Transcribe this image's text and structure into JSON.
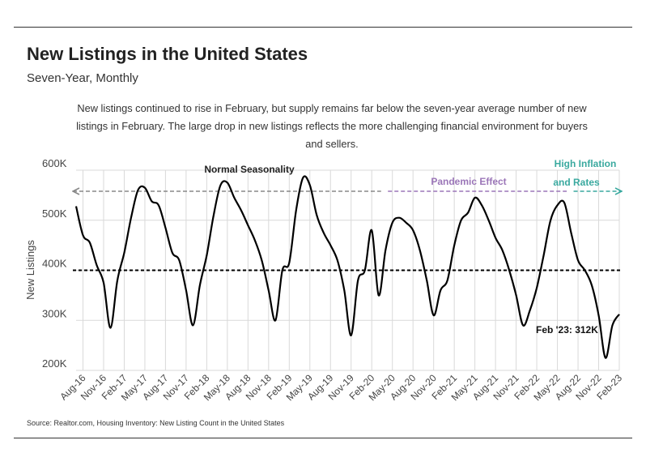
{
  "header": {
    "title": "New Listings in the United States",
    "subtitle": "Seven-Year, Monthly",
    "description": "New listings continued to rise in February, but supply remains far below the seven-year average number of new listings in February. The large drop in new listings reflects the more challenging financial environment for buyers and sellers."
  },
  "footer": {
    "source": "Source:  Realtor.com, Housing Inventory: New Listing Count in the United States"
  },
  "chart_data": {
    "type": "line",
    "ylabel": "New Listings",
    "xlabel": "",
    "ylim": [
      200000,
      600000
    ],
    "y_ticks": [
      {
        "value": 200000,
        "label": "200K"
      },
      {
        "value": 300000,
        "label": "300K"
      },
      {
        "value": 400000,
        "label": "400K"
      },
      {
        "value": 500000,
        "label": "500K"
      },
      {
        "value": 600000,
        "label": "600K"
      }
    ],
    "x_tick_labels": [
      "Aug-16",
      "Nov-16",
      "Feb-17",
      "May-17",
      "Aug-17",
      "Nov-17",
      "Feb-18",
      "May-18",
      "Aug-18",
      "Nov-18",
      "Feb-19",
      "May-19",
      "Aug-19",
      "Nov-19",
      "Feb-20",
      "May-20",
      "Aug-20",
      "Nov-20",
      "Feb-21",
      "May-21",
      "Aug-21",
      "Nov-21",
      "Feb-22",
      "May-22",
      "Aug-22",
      "Nov-22",
      "Feb-23"
    ],
    "x": [
      "Jul-16",
      "Aug-16",
      "Sep-16",
      "Oct-16",
      "Nov-16",
      "Dec-16",
      "Jan-17",
      "Feb-17",
      "Mar-17",
      "Apr-17",
      "May-17",
      "Jun-17",
      "Jul-17",
      "Aug-17",
      "Sep-17",
      "Oct-17",
      "Nov-17",
      "Dec-17",
      "Jan-18",
      "Feb-18",
      "Mar-18",
      "Apr-18",
      "May-18",
      "Jun-18",
      "Jul-18",
      "Aug-18",
      "Sep-18",
      "Oct-18",
      "Nov-18",
      "Dec-18",
      "Jan-19",
      "Feb-19",
      "Mar-19",
      "Apr-19",
      "May-19",
      "Jun-19",
      "Jul-19",
      "Aug-19",
      "Sep-19",
      "Oct-19",
      "Nov-19",
      "Dec-19",
      "Jan-20",
      "Feb-20",
      "Mar-20",
      "Apr-20",
      "May-20",
      "Jun-20",
      "Jul-20",
      "Aug-20",
      "Sep-20",
      "Oct-20",
      "Nov-20",
      "Dec-20",
      "Jan-21",
      "Feb-21",
      "Mar-21",
      "Apr-21",
      "May-21",
      "Jun-21",
      "Jul-21",
      "Aug-21",
      "Sep-21",
      "Oct-21",
      "Nov-21",
      "Dec-21",
      "Jan-22",
      "Feb-22",
      "Mar-22",
      "Apr-22",
      "May-22",
      "Jun-22",
      "Jul-22",
      "Aug-22",
      "Sep-22",
      "Oct-22",
      "Nov-22",
      "Dec-22",
      "Jan-23",
      "Feb-23"
    ],
    "series": [
      {
        "values": [
          528000,
          470000,
          455000,
          410000,
          375000,
          285000,
          380000,
          435000,
          505000,
          560000,
          565000,
          538000,
          530000,
          485000,
          435000,
          420000,
          360000,
          290000,
          370000,
          430000,
          510000,
          570000,
          575000,
          545000,
          520000,
          490000,
          460000,
          420000,
          360000,
          300000,
          400000,
          415000,
          520000,
          585000,
          570000,
          510000,
          475000,
          450000,
          420000,
          360000,
          270000,
          380000,
          400000,
          480000,
          350000,
          440000,
          495000,
          505000,
          495000,
          480000,
          440000,
          380000,
          310000,
          360000,
          380000,
          450000,
          500000,
          515000,
          545000,
          530000,
          500000,
          465000,
          440000,
          400000,
          350000,
          290000,
          320000,
          365000,
          430000,
          500000,
          530000,
          535000,
          475000,
          420000,
          400000,
          370000,
          310000,
          225000,
          290000,
          312000
        ]
      }
    ],
    "average_line": {
      "value": 400000,
      "style": "dashed"
    },
    "annotations": [
      {
        "text": "Normal Seasonality",
        "color": "#222222",
        "from": "Jul-16",
        "to": "Mar-20"
      },
      {
        "text": "Pandemic Effect",
        "color": "#9b76b8",
        "from": "Apr-20",
        "to": "Jun-22"
      },
      {
        "text": "High Inflation",
        "text2": "and Rates",
        "color": "#3aa99f",
        "from": "Jul-22",
        "to": "Feb-23"
      },
      {
        "text": "Feb '23: 312K",
        "color": "#111111",
        "at": "Feb-23"
      }
    ],
    "grid": true,
    "colors": {
      "line": "#000000",
      "grid": "#d9d9d9",
      "normal": "#888888",
      "pandemic": "#9b76b8",
      "inflation": "#3aa99f"
    }
  }
}
